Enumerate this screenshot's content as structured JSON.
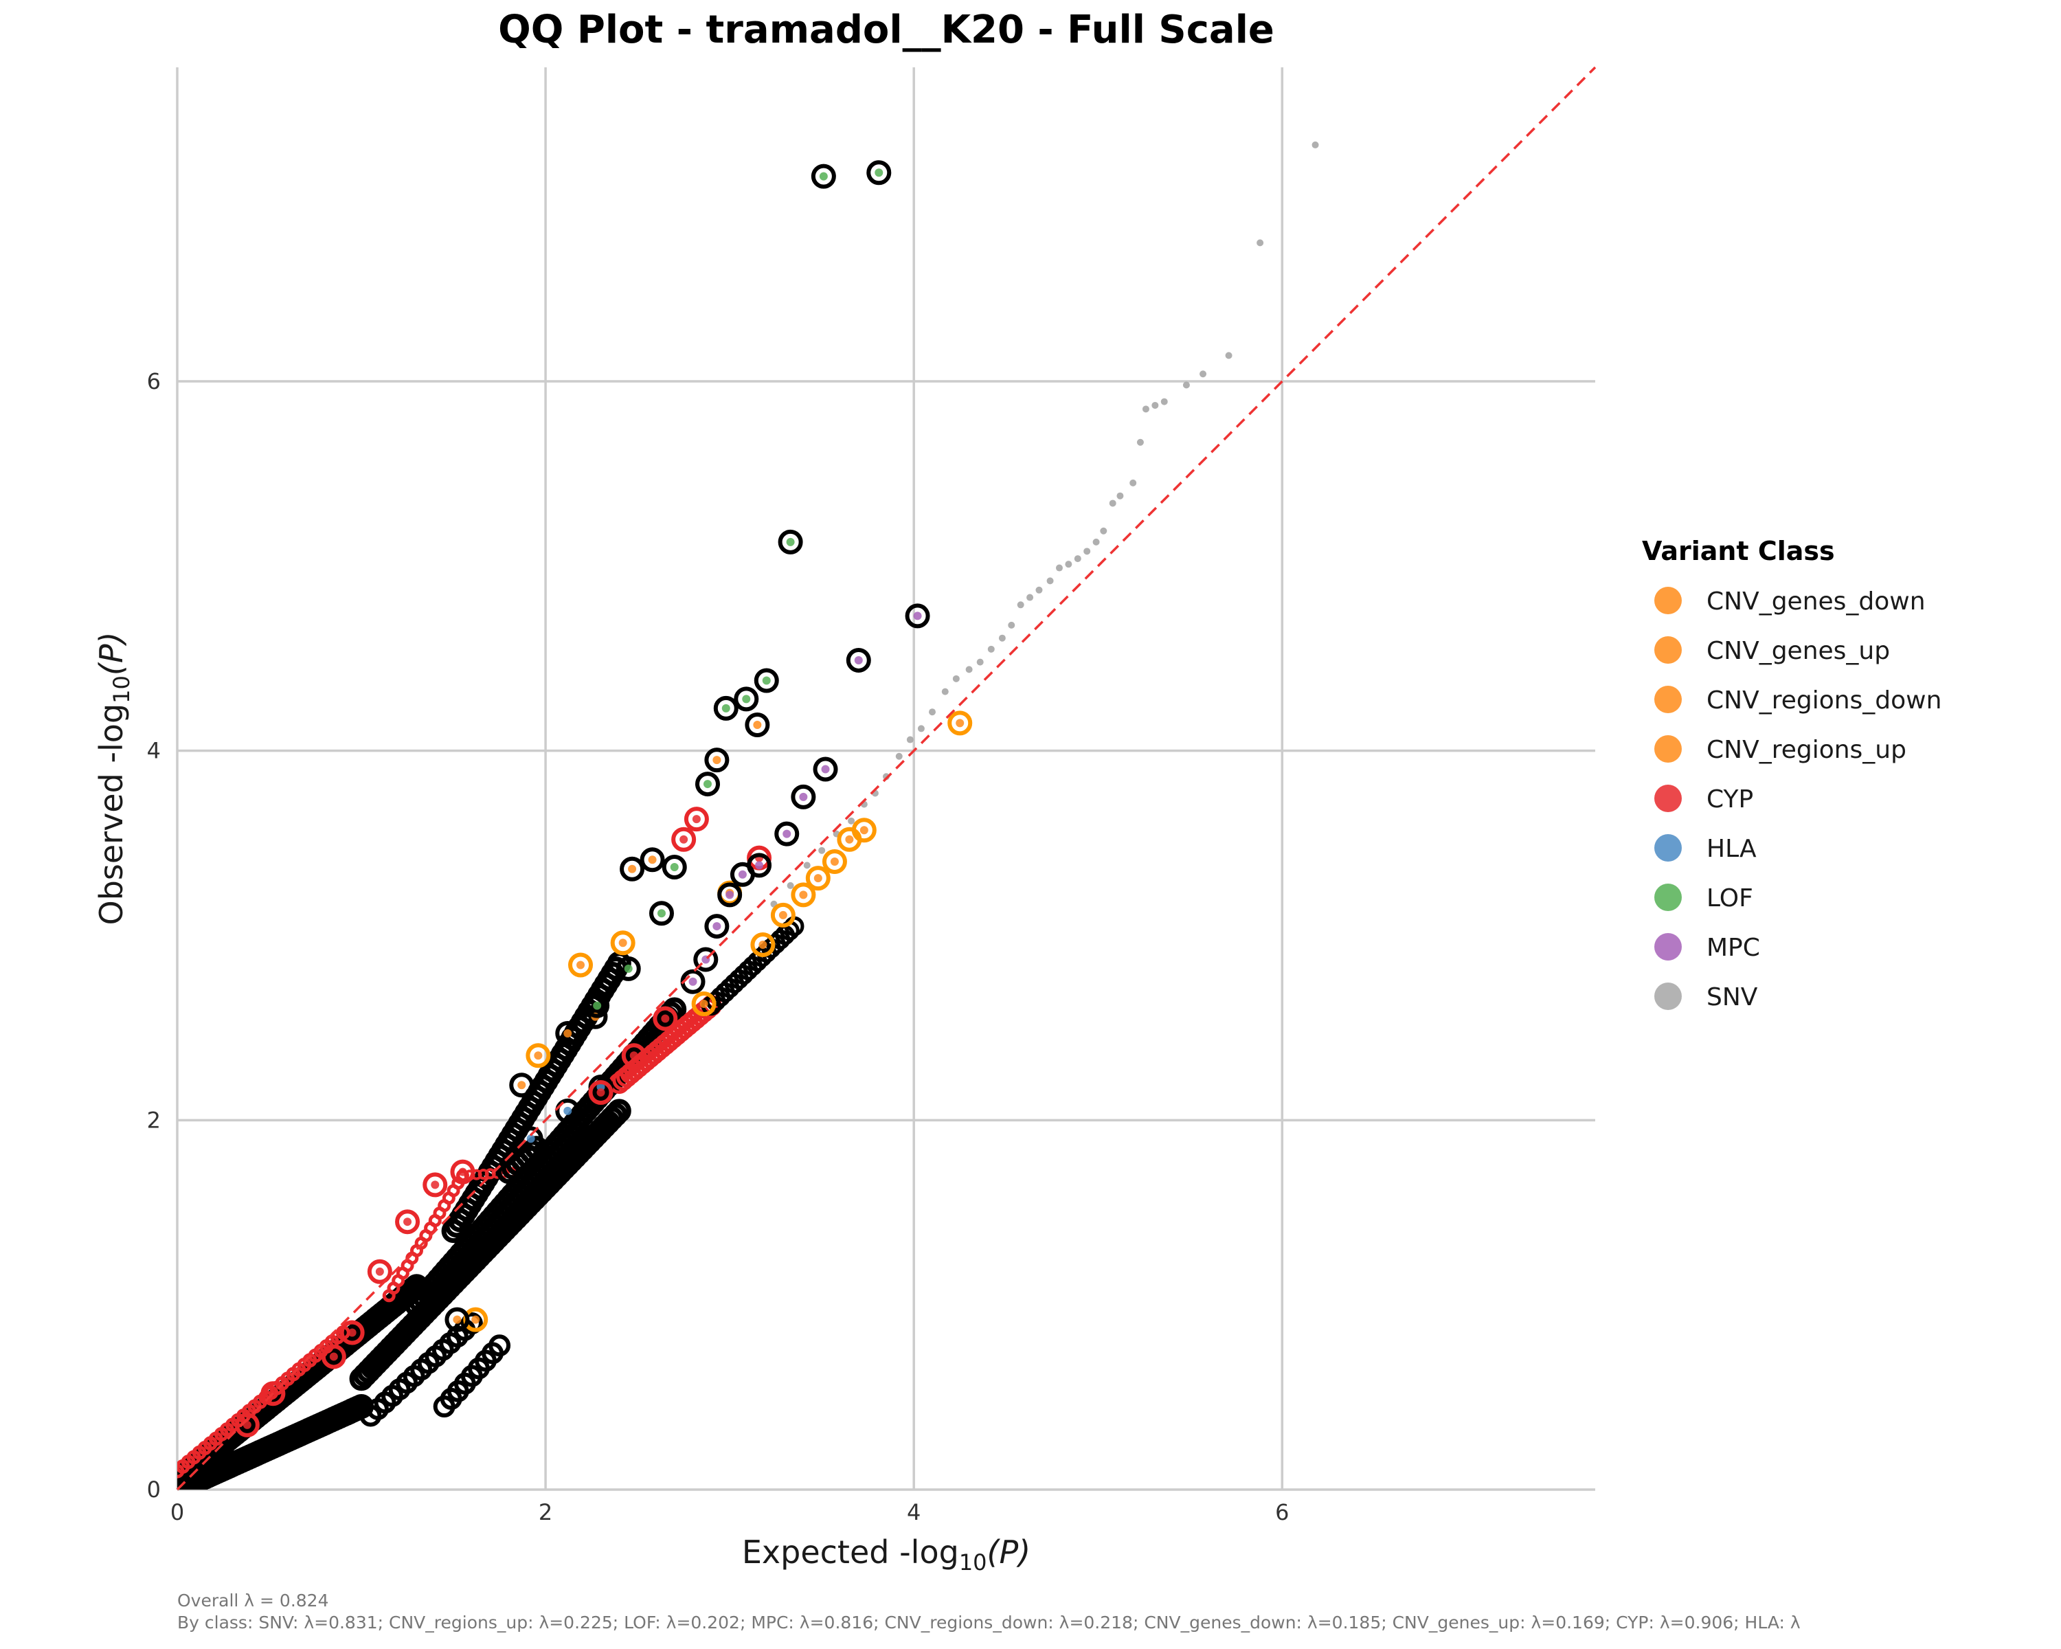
{
  "chart_data": {
    "type": "scatter",
    "title": "QQ Plot - tramadol__K20 - Full Scale",
    "xlabel_main": "Expected ",
    "xlabel_math": "-log",
    "xlabel_sub": "10",
    "xlabel_arg": "(P)",
    "ylabel_main": "Observed ",
    "ylabel_math": "-log",
    "ylabel_sub": "10",
    "ylabel_arg": "(P)",
    "xlim": [
      0,
      7.7
    ],
    "ylim": [
      0,
      7.7
    ],
    "x_ticks": [
      "0",
      "2",
      "4",
      "6"
    ],
    "y_ticks": [
      "0",
      "2",
      "4",
      "6"
    ],
    "grid": true,
    "reference_line": {
      "color": "#ee3333",
      "style": "dashed",
      "x": [
        0,
        7.7
      ],
      "y": [
        0,
        7.7
      ]
    },
    "legend": {
      "title": "Variant Class",
      "placement": "right",
      "entries": [
        {
          "label": "CNV_genes_down",
          "color": "#ff8c1a"
        },
        {
          "label": "CNV_genes_up",
          "color": "#ff8c1a"
        },
        {
          "label": "CNV_regions_down",
          "color": "#ff8c1a"
        },
        {
          "label": "CNV_regions_up",
          "color": "#ff8c1a"
        },
        {
          "label": "CYP",
          "color": "#e8282b"
        },
        {
          "label": "HLA",
          "color": "#4b8bc4"
        },
        {
          "label": "LOF",
          "color": "#55b055"
        },
        {
          "label": "MPC",
          "color": "#a661b8"
        },
        {
          "label": "SNV",
          "color": "#a6a6a6"
        }
      ]
    },
    "series": [
      {
        "name": "SNV",
        "color": "#a6a6a6",
        "points": [
          [
            6.18,
            7.28
          ],
          [
            5.88,
            6.75
          ],
          [
            5.71,
            6.14
          ],
          [
            5.57,
            6.04
          ],
          [
            5.48,
            5.98
          ],
          [
            5.36,
            5.89
          ],
          [
            5.31,
            5.87
          ],
          [
            5.26,
            5.85
          ],
          [
            5.23,
            5.67
          ],
          [
            5.19,
            5.45
          ],
          [
            5.12,
            5.38
          ],
          [
            5.08,
            5.34
          ],
          [
            5.03,
            5.19
          ],
          [
            4.99,
            5.13
          ],
          [
            4.94,
            5.08
          ],
          [
            4.89,
            5.04
          ],
          [
            4.84,
            5.01
          ],
          [
            4.79,
            4.99
          ],
          [
            4.74,
            4.92
          ],
          [
            4.68,
            4.87
          ],
          [
            4.63,
            4.83
          ],
          [
            4.58,
            4.79
          ],
          [
            4.53,
            4.68
          ],
          [
            4.48,
            4.61
          ],
          [
            4.42,
            4.55
          ],
          [
            4.36,
            4.48
          ],
          [
            4.3,
            4.44
          ],
          [
            4.23,
            4.39
          ],
          [
            4.17,
            4.32
          ],
          [
            4.1,
            4.21
          ],
          [
            4.04,
            4.12
          ],
          [
            3.98,
            4.06
          ],
          [
            3.92,
            3.97
          ],
          [
            3.85,
            3.86
          ],
          [
            3.79,
            3.77
          ],
          [
            3.73,
            3.71
          ],
          [
            3.66,
            3.62
          ],
          [
            3.58,
            3.55
          ],
          [
            3.5,
            3.46
          ],
          [
            3.42,
            3.38
          ],
          [
            3.33,
            3.27
          ],
          [
            3.24,
            3.17
          ]
        ]
      },
      {
        "name": "LOF",
        "color": "#55b055",
        "ring": "#000000",
        "points": [
          [
            3.81,
            7.13
          ],
          [
            3.51,
            7.11
          ],
          [
            3.33,
            5.13
          ],
          [
            3.2,
            4.38
          ],
          [
            2.98,
            4.23
          ],
          [
            3.09,
            4.28
          ],
          [
            2.88,
            3.82
          ],
          [
            2.7,
            3.37
          ],
          [
            2.63,
            3.12
          ],
          [
            2.45,
            2.82
          ],
          [
            2.28,
            2.62
          ]
        ]
      },
      {
        "name": "MPC",
        "color": "#a661b8",
        "ring": "#000000",
        "points": [
          [
            4.02,
            4.73
          ],
          [
            3.7,
            4.49
          ],
          [
            3.52,
            3.9
          ],
          [
            3.4,
            3.75
          ],
          [
            3.31,
            3.55
          ],
          [
            3.16,
            3.38
          ],
          [
            3.07,
            3.33
          ],
          [
            3.0,
            3.22
          ],
          [
            2.93,
            3.05
          ],
          [
            2.87,
            2.87
          ],
          [
            2.8,
            2.75
          ]
        ]
      },
      {
        "name": "CNV_regions_up",
        "color": "#ff8c1a",
        "ring": "#ff9900",
        "points": [
          [
            4.25,
            4.15
          ],
          [
            3.73,
            3.57
          ],
          [
            3.65,
            3.52
          ],
          [
            3.57,
            3.4
          ],
          [
            3.48,
            3.31
          ],
          [
            3.4,
            3.22
          ],
          [
            3.29,
            3.11
          ],
          [
            3.18,
            2.95
          ],
          [
            3.0,
            3.23
          ],
          [
            2.86,
            2.63
          ],
          [
            2.42,
            2.96
          ],
          [
            2.19,
            2.84
          ],
          [
            1.96,
            2.35
          ],
          [
            1.62,
            0.92
          ]
        ]
      },
      {
        "name": "CNV_genes_down",
        "color": "#ff8c1a",
        "ring": "#000000",
        "points": [
          [
            2.93,
            3.95
          ],
          [
            3.15,
            4.14
          ],
          [
            2.58,
            3.41
          ],
          [
            2.47,
            3.36
          ],
          [
            2.27,
            2.56
          ],
          [
            2.12,
            2.47
          ],
          [
            1.87,
            2.19
          ],
          [
            1.52,
            0.92
          ]
        ]
      },
      {
        "name": "CYP",
        "color": "#e8282b",
        "ring": "#e8282b",
        "points": [
          [
            3.16,
            3.42
          ],
          [
            2.82,
            3.63
          ],
          [
            2.75,
            3.52
          ],
          [
            2.65,
            2.55
          ],
          [
            2.48,
            2.35
          ],
          [
            2.3,
            2.15
          ],
          [
            1.55,
            1.72
          ],
          [
            1.4,
            1.65
          ],
          [
            1.25,
            1.45
          ],
          [
            1.1,
            1.18
          ],
          [
            0.95,
            0.85
          ],
          [
            0.85,
            0.72
          ],
          [
            0.52,
            0.52
          ],
          [
            0.38,
            0.35
          ]
        ]
      },
      {
        "name": "HLA",
        "color": "#4b8bc4",
        "ring": "#000000",
        "points": [
          [
            2.3,
            2.18
          ],
          [
            2.12,
            2.05
          ],
          [
            1.92,
            1.9
          ]
        ]
      }
    ],
    "caption_line1": "Overall λ = 0.824",
    "caption_line2": "By class: SNV: λ=0.831; CNV_regions_up: λ=0.225; LOF: λ=0.202; MPC: λ=0.816; CNV_regions_down: λ=0.218; CNV_genes_down: λ=0.185; CNV_genes_up: λ=0.169; CYP: λ=0.906; HLA: λ"
  }
}
